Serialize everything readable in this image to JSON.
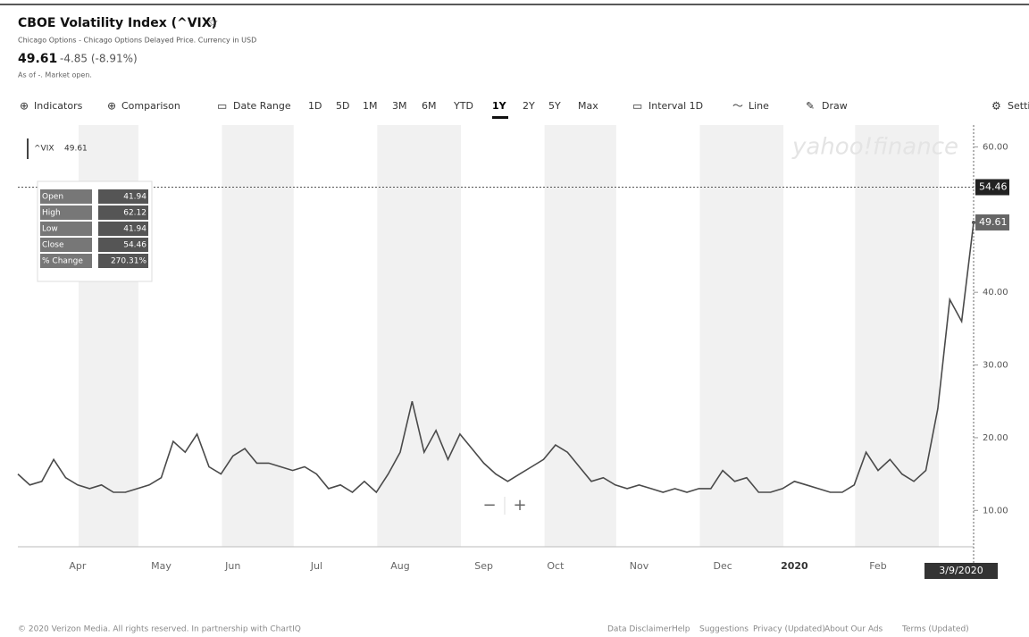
{
  "header": {
    "title": "CBOE Volatility Index (^VIX)",
    "subtitle": "Chicago Options - Chicago Options Delayed Price. Currency in USD",
    "price": "49.61",
    "change": "-4.85 (-8.91%)",
    "status": "As of -. Market open."
  },
  "toolbar": {
    "left": [
      "Indicators",
      "Comparison"
    ],
    "range_label": "Date Range",
    "ranges": [
      "1D",
      "5D",
      "1M",
      "3M",
      "6M",
      "YTD",
      "1Y",
      "2Y",
      "5Y",
      "Max"
    ],
    "active_range": "1Y",
    "tools": [
      "Interval 1D",
      "Line",
      "Draw"
    ],
    "settings": "Settings"
  },
  "chart_data": {
    "type": "line",
    "categories": [
      null,
      null,
      null,
      null,
      null,
      "Apr",
      null,
      null,
      null,
      null,
      null,
      null,
      "May",
      null,
      null,
      null,
      null,
      null,
      "Jun",
      null,
      null,
      null,
      null,
      null,
      null,
      "Jul",
      null,
      null,
      null,
      null,
      null,
      null,
      "Aug",
      null,
      null,
      null,
      null,
      null,
      null,
      "Sep",
      null,
      null,
      null,
      null,
      null,
      "Oct",
      null,
      null,
      null,
      null,
      null,
      null,
      "Nov",
      null,
      null,
      null,
      null,
      null,
      null,
      "Dec",
      null,
      null,
      null,
      null,
      null,
      "2020",
      null,
      null,
      null,
      null,
      null,
      null,
      "Feb",
      null,
      null,
      null,
      null,
      null,
      null,
      null,
      "3/9/2020"
    ],
    "series": [
      {
        "name": "^VIX",
        "color": "#4a4a4a",
        "values": [
          15,
          13.5,
          14,
          17,
          14.5,
          13.5,
          13,
          13.5,
          12.5,
          12.5,
          13,
          13.5,
          14.5,
          19.5,
          18,
          20.5,
          16,
          15,
          17.5,
          18.5,
          16.5,
          16.5,
          16,
          15.5,
          16,
          15,
          13,
          13.5,
          12.5,
          14,
          12.5,
          15,
          18,
          25,
          18,
          21,
          17,
          20.5,
          18.5,
          16.5,
          15,
          14,
          15,
          16,
          17,
          19,
          18,
          16,
          14,
          14.5,
          13.5,
          13,
          13.5,
          13,
          12.5,
          13,
          12.5,
          13,
          13,
          15.5,
          14,
          14.5,
          12.5,
          12.5,
          13,
          14,
          13.5,
          13,
          12.5,
          12.5,
          13.5,
          18,
          15.5,
          17,
          15,
          14,
          15.5,
          24,
          39,
          36,
          49.61
        ]
      }
    ],
    "ylim": [
      5,
      63
    ],
    "yticks": [
      {
        "value": 10,
        "label": "10.00"
      },
      {
        "value": 20,
        "label": "20.00"
      },
      {
        "value": 30,
        "label": "30.00"
      },
      {
        "value": 40,
        "label": "40.00"
      },
      {
        "value": 60,
        "label": "60.00"
      }
    ],
    "price_markers": [
      {
        "value": 54.46,
        "label": "54.46"
      },
      {
        "value": 49.61,
        "label": "49.61"
      }
    ],
    "tooltip": [
      [
        "Open",
        "41.94"
      ],
      [
        "High",
        "62.12"
      ],
      [
        "Low",
        "41.94"
      ],
      [
        "Close",
        "54.46"
      ],
      [
        "% Change",
        "270.31%"
      ]
    ],
    "zoom": [
      "−",
      "+"
    ],
    "watermark": "yahoo!finance"
  },
  "footer": {
    "left": "© 2020 Verizon Media. All rights reserved. In partnership with ChartIQ",
    "links": [
      "Data Disclaimer",
      "Help",
      "Suggestions",
      "Privacy (Updated)",
      "About Our Ads",
      "Terms (Updated)"
    ]
  }
}
